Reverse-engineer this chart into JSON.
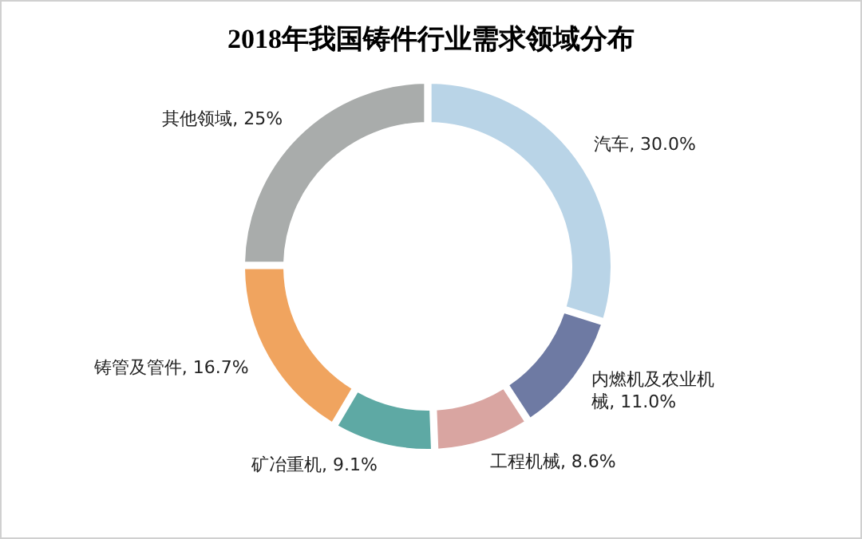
{
  "chart_data": {
    "type": "donut",
    "title": "2018年我国铸件行业需求领域分布",
    "categories": [
      "汽车",
      "内燃机及农业机械",
      "工程机械",
      "矿冶重机",
      "铸管及管件",
      "其他领域"
    ],
    "values": [
      30.0,
      11.0,
      8.6,
      9.1,
      16.7,
      25
    ],
    "value_labels": [
      "30.0%",
      "11.0%",
      "8.6%",
      "9.1%",
      "16.7%",
      "25%"
    ],
    "colors": [
      "#b9d4e7",
      "#6e7aa3",
      "#d9a5a1",
      "#5ea9a4",
      "#f0a45f",
      "#a9acab"
    ],
    "legend": false
  }
}
